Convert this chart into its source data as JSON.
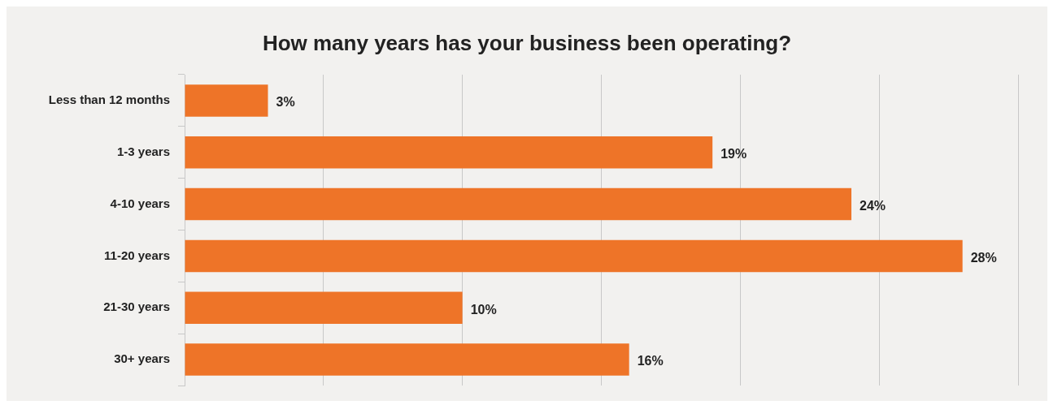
{
  "chart_data": {
    "type": "bar",
    "orientation": "horizontal",
    "title": "How many years has your business been operating?",
    "categories": [
      "Less than 12 months",
      "1-3 years",
      "4-10 years",
      "11-20 years",
      "21-30 years",
      "30+ years"
    ],
    "values": [
      3,
      19,
      24,
      28,
      10,
      16
    ],
    "value_labels": [
      "3%",
      "19%",
      "24%",
      "28%",
      "10%",
      "16%"
    ],
    "color": "#ee7428",
    "xlim": [
      0,
      30
    ],
    "xticks": [
      {
        "value": 0,
        "label": null
      },
      {
        "value": 5,
        "label": null
      },
      {
        "value": 10,
        "label": null
      },
      {
        "value": 15,
        "label": null
      },
      {
        "value": 20,
        "label": null
      },
      {
        "value": 25,
        "label": null
      },
      {
        "value": 30,
        "label": null
      }
    ],
    "tick_labels": "y",
    "grid": "x",
    "legend": false
  }
}
